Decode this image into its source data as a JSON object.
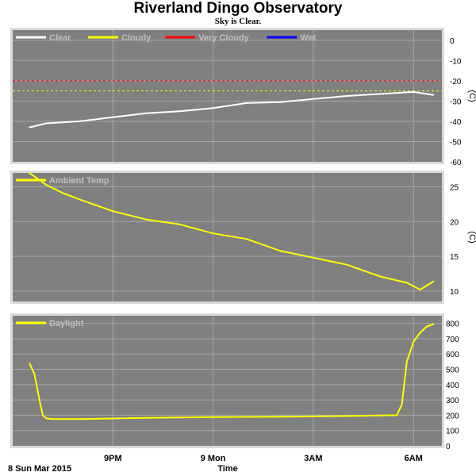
{
  "title": "Riverland Dingo Observatory",
  "subtitle": "Sky is Clear.",
  "date_label": "8 Sun Mar 2015",
  "x_axis_label": "Time",
  "x_ticks": [
    "9PM",
    "9 Mon",
    "3AM",
    "6AM"
  ],
  "colors": {
    "panel_bg": "#808080",
    "grid": "#a6a6a6",
    "frame": "#d9d9d9",
    "clear": "#ffffff",
    "cloudy": "#ffff00",
    "very_cloudy": "#ff0000",
    "wet": "#0000ff"
  },
  "chart_data": [
    {
      "type": "line",
      "name": "sky-temperature",
      "legend": [
        "Clear",
        "Cloudy",
        "Very Cloudy",
        "Wet"
      ],
      "ylabel": "(C)",
      "y_ticks": [
        0,
        -10,
        -20,
        -30,
        -40,
        -50,
        -60
      ],
      "ylim": [
        -60,
        5
      ],
      "thresholds": [
        {
          "name": "Very Cloudy",
          "value": -20,
          "color": "#ff0000"
        },
        {
          "name": "Cloudy",
          "value": -25,
          "color": "#ffff00"
        }
      ],
      "x_hours": [
        18.5,
        19,
        20,
        21,
        22,
        23,
        24,
        25,
        26,
        27,
        28,
        29,
        30,
        30.6
      ],
      "series": [
        {
          "name": "Clear",
          "color": "#ffffff",
          "values": [
            -43,
            -41,
            -40,
            -38,
            -36,
            -35,
            -33.5,
            -31,
            -30.5,
            -29,
            -27.5,
            -26.5,
            -25.5,
            -27
          ]
        }
      ]
    },
    {
      "type": "line",
      "name": "ambient-temperature",
      "legend": [
        "Ambient Temp"
      ],
      "ylabel": "(C)",
      "y_ticks": [
        25,
        20,
        15,
        10
      ],
      "ylim": [
        8.5,
        27
      ],
      "x_hours": [
        18.5,
        19,
        19.5,
        20,
        21,
        22,
        23,
        24,
        25,
        26,
        27,
        28,
        29,
        29.8,
        30.2,
        30.6
      ],
      "series": [
        {
          "name": "Ambient Temp",
          "color": "#ffff00",
          "values": [
            27,
            25.3,
            24.1,
            23.2,
            21.5,
            20.3,
            19.6,
            18.3,
            17.5,
            15.8,
            14.8,
            13.8,
            12.1,
            11.2,
            10.2,
            11.4
          ]
        }
      ]
    },
    {
      "type": "line",
      "name": "daylight",
      "legend": [
        "Daylight"
      ],
      "ylabel": "",
      "y_ticks": [
        800,
        700,
        600,
        500,
        400,
        300,
        200,
        100,
        0
      ],
      "ylim": [
        0,
        850
      ],
      "x_hours": [
        18.5,
        18.65,
        18.8,
        18.9,
        19.0,
        19.2,
        20,
        22,
        24,
        26,
        28,
        29.5,
        29.65,
        29.8,
        30,
        30.2,
        30.4,
        30.6
      ],
      "series": [
        {
          "name": "Daylight",
          "color": "#ffff00",
          "values": [
            540,
            470,
            300,
            200,
            180,
            175,
            175,
            183,
            188,
            190,
            195,
            200,
            270,
            550,
            680,
            740,
            780,
            795
          ]
        }
      ]
    }
  ]
}
